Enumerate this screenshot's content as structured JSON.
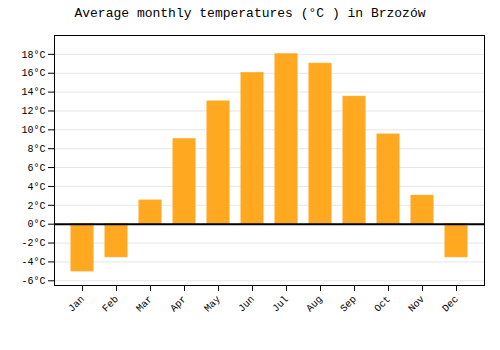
{
  "chart_data": {
    "type": "bar",
    "title": "Average monthly temperatures (°C ) in Brzozów",
    "categories": [
      "Jan",
      "Feb",
      "Mar",
      "Apr",
      "May",
      "Jun",
      "Jul",
      "Aug",
      "Sep",
      "Oct",
      "Nov",
      "Dec"
    ],
    "values": [
      -5.0,
      -3.5,
      2.5,
      9.0,
      13.0,
      16.0,
      18.0,
      17.0,
      13.5,
      9.5,
      3.0,
      -3.5
    ],
    "color": "#FFA820",
    "ylim": [
      -6.5,
      20
    ],
    "yticks": [
      {
        "value": -6,
        "label": "-6°C"
      },
      {
        "value": -4,
        "label": "-4°C"
      },
      {
        "value": -2,
        "label": "-2°C"
      },
      {
        "value": 0,
        "label": "0°C"
      },
      {
        "value": 2,
        "label": "2°C"
      },
      {
        "value": 4,
        "label": "4°C"
      },
      {
        "value": 6,
        "label": "6°C"
      },
      {
        "value": 8,
        "label": "8°C"
      },
      {
        "value": 10,
        "label": "10°C"
      },
      {
        "value": 12,
        "label": "12°C"
      },
      {
        "value": 14,
        "label": "14°C"
      },
      {
        "value": 16,
        "label": "16°C"
      },
      {
        "value": 18,
        "label": "18°C"
      }
    ],
    "grid": true
  }
}
